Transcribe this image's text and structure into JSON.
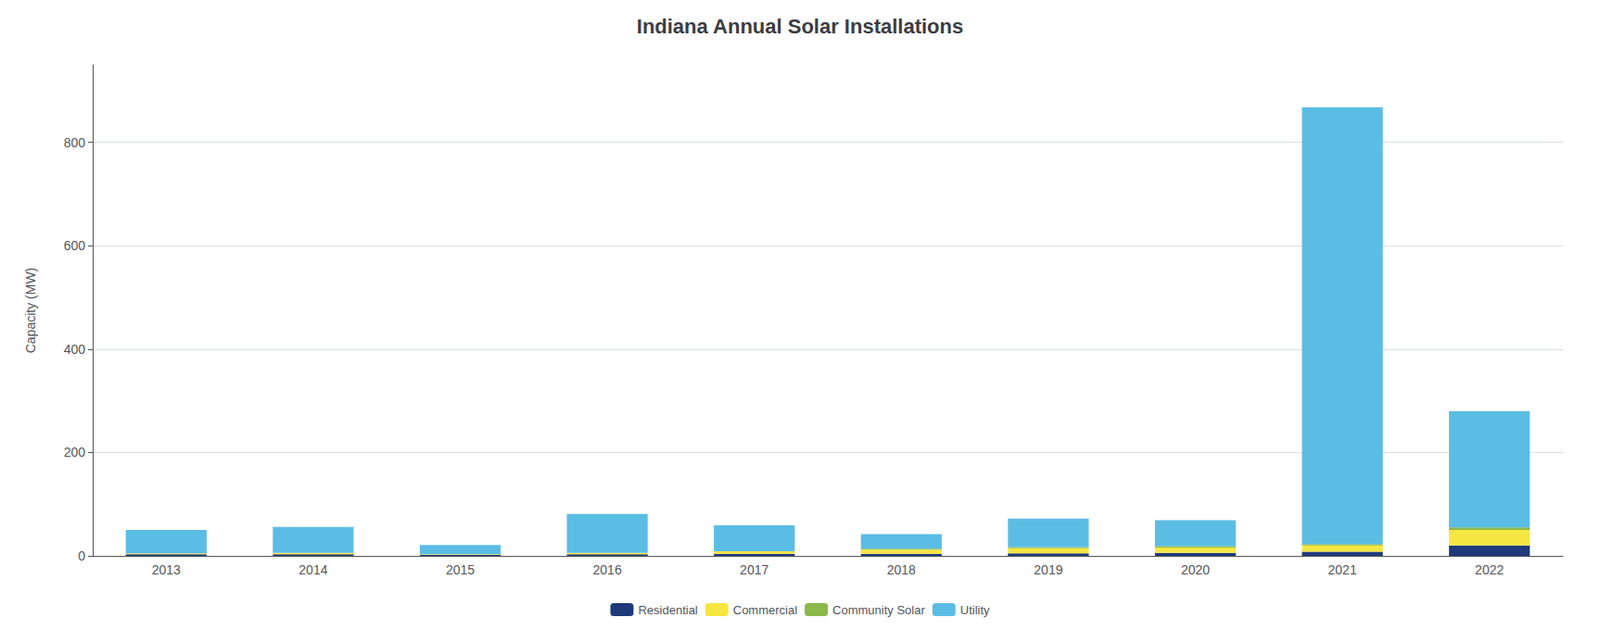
{
  "chart_data": {
    "type": "bar",
    "title": "Indiana Annual Solar Installations",
    "ylabel": "Capacity (MW)",
    "categories": [
      "2013",
      "2014",
      "2015",
      "2016",
      "2017",
      "2018",
      "2019",
      "2020",
      "2021",
      "2022"
    ],
    "series": [
      {
        "name": "Residential",
        "color": "#1f3a7a",
        "values": [
          3,
          3,
          2,
          3,
          4,
          4,
          5,
          6,
          8,
          20
        ]
      },
      {
        "name": "Commercial",
        "color": "#f5e642",
        "values": [
          2,
          3,
          1,
          3,
          5,
          8,
          10,
          10,
          12,
          30
        ]
      },
      {
        "name": "Community Solar",
        "color": "#8db84a",
        "values": [
          0,
          0,
          0,
          0,
          0,
          2,
          2,
          3,
          3,
          5
        ]
      },
      {
        "name": "Utility",
        "color": "#5bbde4",
        "values": [
          45,
          50,
          18,
          75,
          50,
          28,
          55,
          50,
          845,
          225
        ]
      }
    ],
    "stacked": true,
    "ylim": [
      0,
      950
    ],
    "yticks": [
      0,
      200,
      400,
      600,
      800
    ],
    "grid": true,
    "legend": "bottom"
  }
}
